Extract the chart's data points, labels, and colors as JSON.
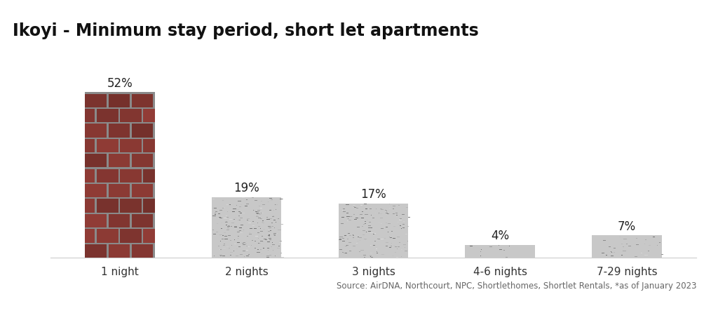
{
  "categories": [
    "1 night",
    "2 nights",
    "3 nights",
    "4-6 nights",
    "7-29 nights"
  ],
  "values": [
    52,
    19,
    17,
    4,
    7
  ],
  "labels": [
    "52%",
    "19%",
    "17%",
    "4%",
    "7%"
  ],
  "title": "Ikoyi - Minimum stay period, short let apartments",
  "source_text": "Source: AirDNA, Northcourt, NPC, Shortlethomes, Shortlet Rentals, *as of January 2023",
  "title_bg_color": "#ebebeb",
  "ylim": [
    0,
    58
  ],
  "title_fontsize": 17,
  "label_fontsize": 12,
  "tick_fontsize": 11,
  "source_fontsize": 8.5,
  "bar_width": 0.55
}
